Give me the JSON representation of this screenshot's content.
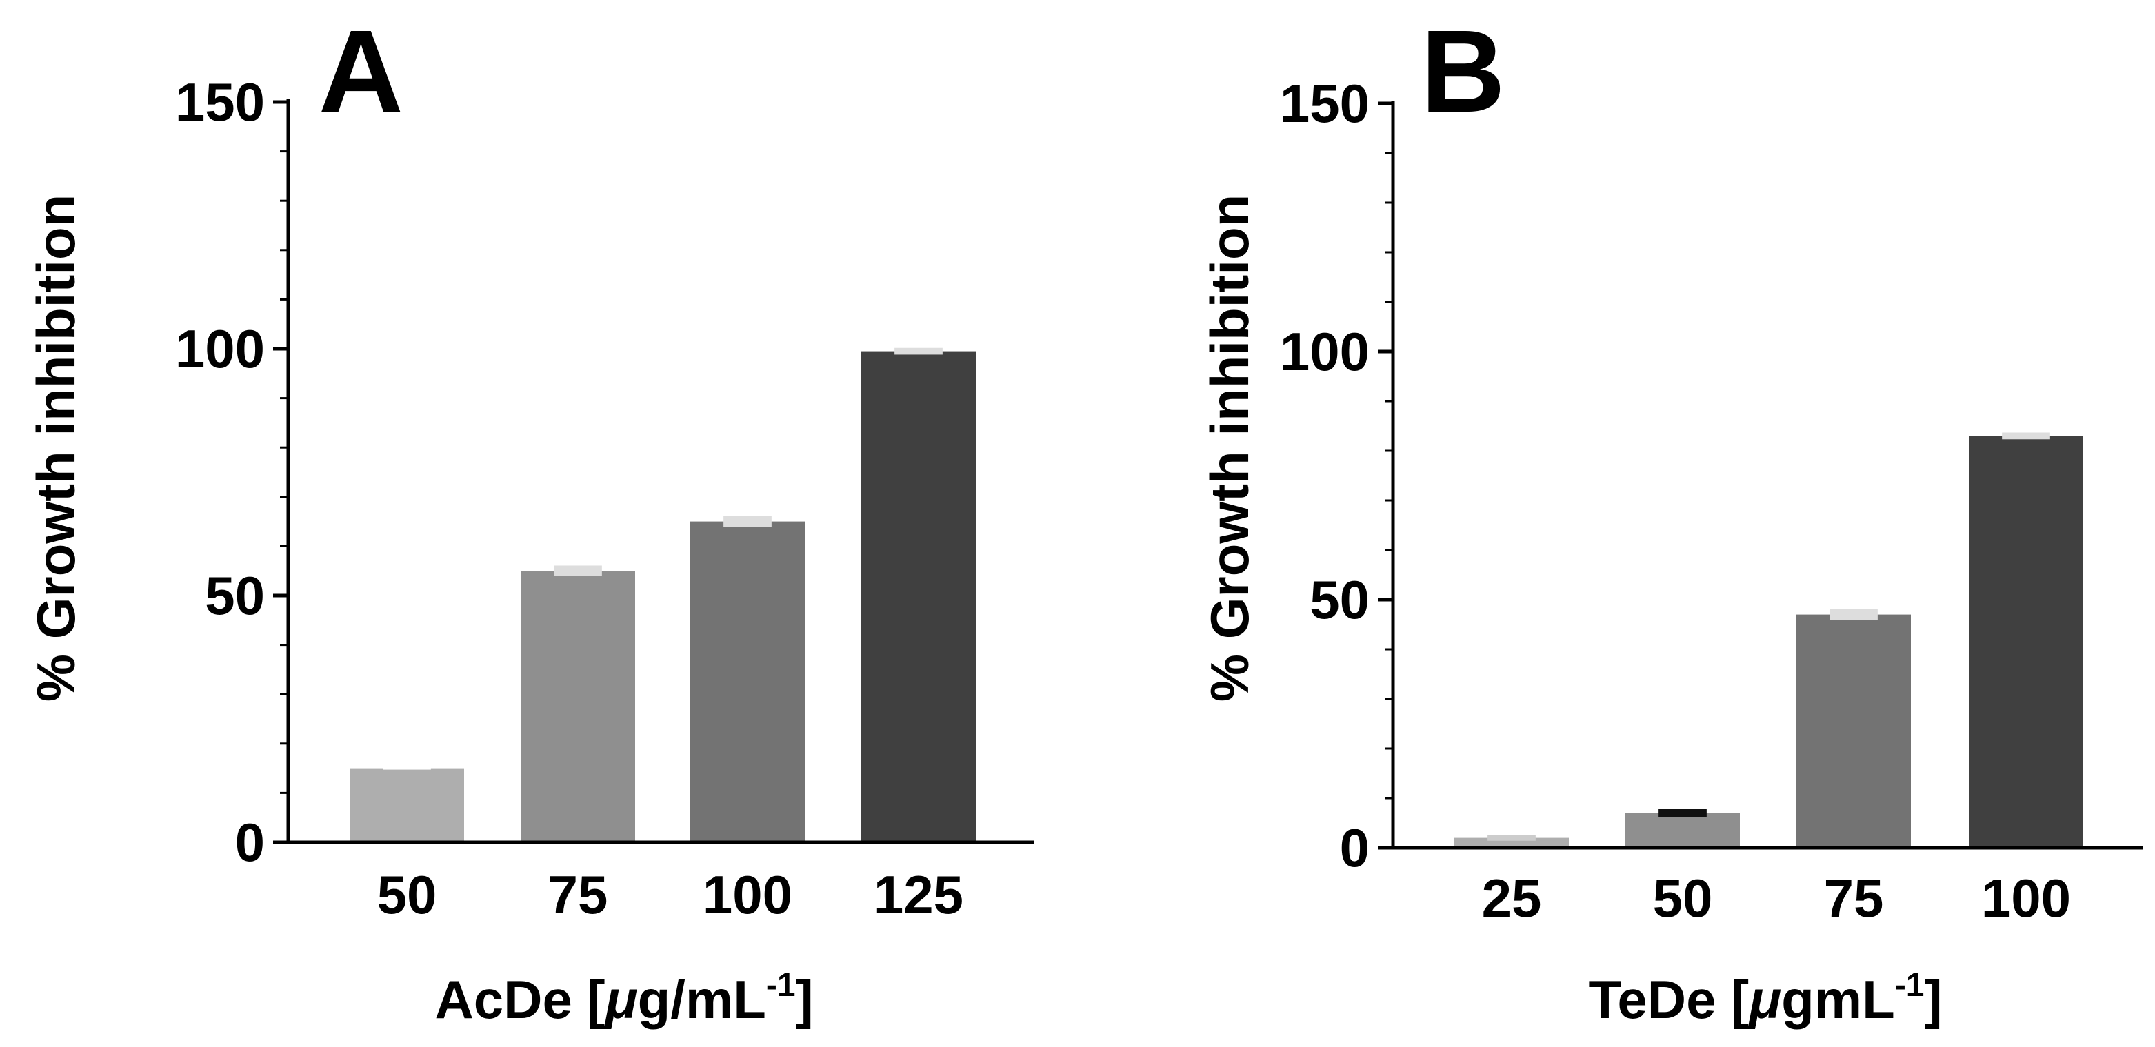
{
  "chart_data": [
    {
      "type": "bar",
      "panel_label": "A",
      "categories": [
        "50",
        "75",
        "100",
        "125"
      ],
      "values": [
        15,
        55,
        65,
        99.5
      ],
      "error": [
        0,
        0.8,
        0.8,
        0.4
      ],
      "colors": [
        "#aeaeae",
        "#8f8f8f",
        "#737373",
        "#404040"
      ],
      "error_colors": [
        "#ffffff",
        "#dddddd",
        "#dddddd",
        "#dddddd"
      ],
      "ylim": [
        0,
        150
      ],
      "yticks": [
        "0",
        "50",
        "100",
        "150"
      ],
      "ylabel": "% Growth inhibition",
      "xlabel_text": "AcDe [",
      "xlabel_mu": "μ",
      "xlabel_unit": "g/mL",
      "xlabel_sup": "-1",
      "xlabel_close": "]"
    },
    {
      "type": "bar",
      "panel_label": "B",
      "categories": [
        "25",
        "50",
        "75",
        "100"
      ],
      "values": [
        2,
        7,
        47,
        83
      ],
      "error": [
        0.3,
        0.5,
        0.8,
        0.4
      ],
      "colors": [
        "#aeaeae",
        "#8f8f8f",
        "#737373",
        "#404040"
      ],
      "error_colors": [
        "#cccccc",
        "#111111",
        "#dddddd",
        "#dddddd"
      ],
      "ylim": [
        0,
        150
      ],
      "yticks": [
        "0",
        "50",
        "100",
        "150"
      ],
      "ylabel": "% Growth inhibition",
      "xlabel_text": "TeDe [",
      "xlabel_mu": "μ",
      "xlabel_unit": "gmL",
      "xlabel_sup": "-1",
      "xlabel_close": "]"
    }
  ]
}
